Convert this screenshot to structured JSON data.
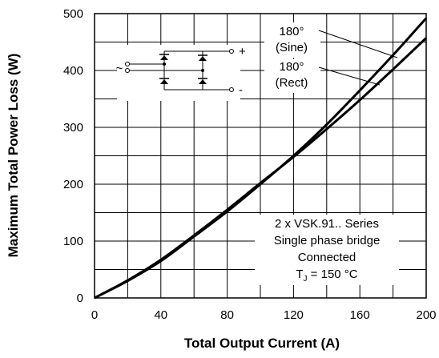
{
  "chart_data": {
    "type": "line",
    "xlabel": "Total Output Current (A)",
    "ylabel": "Maximum Total Power Loss (W)",
    "xlim": [
      0,
      200
    ],
    "ylim": [
      0,
      500
    ],
    "x_ticks": [
      "0",
      "40",
      "80",
      "120",
      "160",
      "200"
    ],
    "y_ticks": [
      "0",
      "100",
      "200",
      "300",
      "400",
      "500"
    ],
    "grid": true,
    "series": [
      {
        "name": "180° (Sine)",
        "x": [
          0,
          20,
          40,
          60,
          80,
          100,
          120,
          140,
          160,
          180,
          200
        ],
        "y": [
          0,
          30,
          65,
          108,
          152,
          200,
          250,
          305,
          365,
          427,
          492
        ]
      },
      {
        "name": "180° (Rect)",
        "x": [
          0,
          20,
          40,
          60,
          80,
          100,
          120,
          140,
          160,
          180,
          200
        ],
        "y": [
          0,
          31,
          67,
          110,
          155,
          202,
          248,
          297,
          348,
          402,
          457
        ]
      }
    ],
    "series_labels": [
      {
        "line1": "180°",
        "line2": "(Sine)"
      },
      {
        "line1": "180°",
        "line2": "(Rect)"
      }
    ],
    "annotation": {
      "line1": "2 x VSK.91.. Series",
      "line2": "Single phase bridge",
      "line3": "Connected",
      "line4_prefix": "T",
      "line4_sub": "J",
      "line4_suffix": " = 150 °C"
    },
    "circuit_labels": {
      "tilde": "~",
      "plus": "+",
      "minus": "-"
    }
  }
}
